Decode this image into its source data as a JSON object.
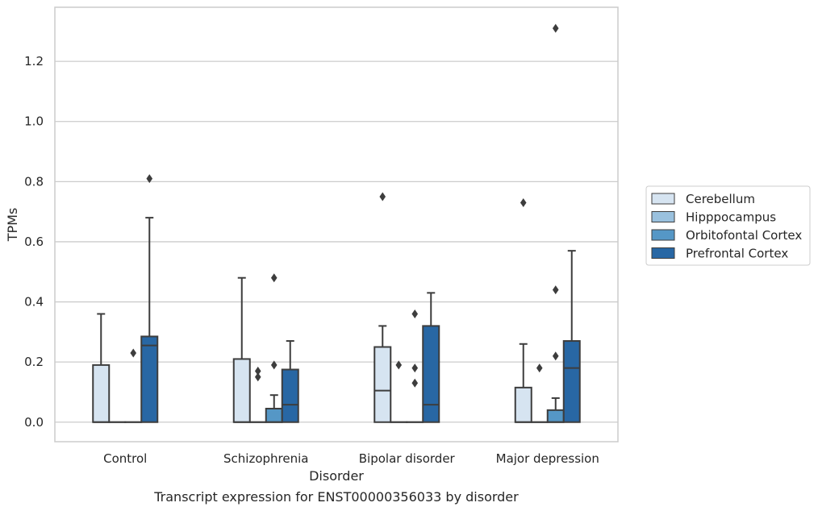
{
  "chart_data": {
    "type": "boxplot",
    "xlabel": "Disorder",
    "ylabel": "TPMs",
    "ylim": [
      -0.065,
      1.38
    ],
    "yticks": [
      "0.0",
      "0.2",
      "0.4",
      "0.6",
      "0.8",
      "1.0",
      "1.2"
    ],
    "grid": "horizontal",
    "legend_position": "right",
    "categories": [
      "Control",
      "Schizophrenia",
      "Bipolar disorder",
      "Major depression"
    ],
    "series": [
      {
        "name": "Cerebellum",
        "color": "#d6e4f1",
        "boxes": [
          {
            "q1": 0,
            "median": 0,
            "q3": 0.19,
            "whisker_low": 0,
            "whisker_high": 0.36,
            "outliers": []
          },
          {
            "q1": 0,
            "median": 0,
            "q3": 0.21,
            "whisker_low": 0,
            "whisker_high": 0.48,
            "outliers": []
          },
          {
            "q1": 0,
            "median": 0.105,
            "q3": 0.25,
            "whisker_low": 0,
            "whisker_high": 0.32,
            "outliers": [
              0.75
            ]
          },
          {
            "q1": 0,
            "median": 0,
            "q3": 0.115,
            "whisker_low": 0,
            "whisker_high": 0.26,
            "outliers": [
              0.73
            ]
          }
        ]
      },
      {
        "name": "Hipppocampus",
        "color": "#9ac1de",
        "boxes": [
          {
            "q1": 0,
            "median": 0,
            "q3": 0,
            "whisker_low": 0,
            "whisker_high": 0,
            "outliers": []
          },
          {
            "q1": 0,
            "median": 0,
            "q3": 0,
            "whisker_low": 0,
            "whisker_high": 0,
            "outliers": [
              0.15,
              0.17
            ]
          },
          {
            "q1": 0,
            "median": 0,
            "q3": 0,
            "whisker_low": 0,
            "whisker_high": 0,
            "outliers": [
              0.19
            ]
          },
          {
            "q1": 0,
            "median": 0,
            "q3": 0,
            "whisker_low": 0,
            "whisker_high": 0,
            "outliers": [
              0.18
            ]
          }
        ]
      },
      {
        "name": "Orbitofontal Cortex",
        "color": "#5597c6",
        "boxes": [
          {
            "q1": 0,
            "median": 0,
            "q3": 0,
            "whisker_low": 0,
            "whisker_high": 0,
            "outliers": [
              0.23
            ]
          },
          {
            "q1": 0,
            "median": 0,
            "q3": 0.045,
            "whisker_low": 0,
            "whisker_high": 0.09,
            "outliers": [
              0.19,
              0.48
            ]
          },
          {
            "q1": 0,
            "median": 0,
            "q3": 0,
            "whisker_low": 0,
            "whisker_high": 0,
            "outliers": [
              0.13,
              0.18,
              0.36
            ]
          },
          {
            "q1": 0,
            "median": 0,
            "q3": 0.04,
            "whisker_low": 0,
            "whisker_high": 0.08,
            "outliers": [
              0.22,
              0.44,
              1.31
            ]
          }
        ]
      },
      {
        "name": "Prefrontal Cortex",
        "color": "#2867a4",
        "boxes": [
          {
            "q1": 0,
            "median": 0.255,
            "q3": 0.285,
            "whisker_low": 0,
            "whisker_high": 0.68,
            "outliers": [
              0.81
            ]
          },
          {
            "q1": 0,
            "median": 0.058,
            "q3": 0.175,
            "whisker_low": 0,
            "whisker_high": 0.27,
            "outliers": []
          },
          {
            "q1": 0,
            "median": 0.058,
            "q3": 0.32,
            "whisker_low": 0,
            "whisker_high": 0.43,
            "outliers": []
          },
          {
            "q1": 0,
            "median": 0.18,
            "q3": 0.27,
            "whisker_low": 0,
            "whisker_high": 0.57,
            "outliers": []
          }
        ]
      }
    ],
    "caption": "Transcript expression for ENST00000356033 by disorder"
  }
}
